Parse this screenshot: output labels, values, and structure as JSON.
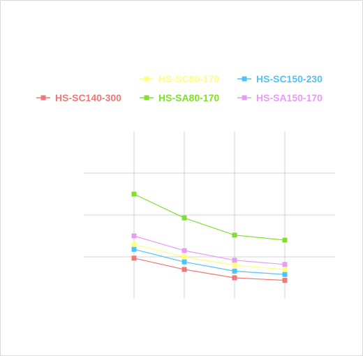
{
  "chart_data": {
    "type": "line",
    "x": [
      1,
      2,
      3,
      4
    ],
    "xlim": [
      0,
      5
    ],
    "ylim": [
      0,
      4
    ],
    "grid": true,
    "legend_position": "top",
    "series": [
      {
        "name": "HS-SC80-170",
        "color": "#ffff7f",
        "values": [
          1.3,
          1.0,
          0.8,
          0.7
        ]
      },
      {
        "name": "HS-SC150-230",
        "color": "#4fc3f7",
        "values": [
          1.18,
          0.88,
          0.66,
          0.58
        ]
      },
      {
        "name": "HS-SC140-300",
        "color": "#f07878",
        "values": [
          0.97,
          0.7,
          0.5,
          0.44
        ]
      },
      {
        "name": "HS-SA80-170",
        "color": "#7ee22a",
        "values": [
          2.5,
          1.93,
          1.52,
          1.4
        ]
      },
      {
        "name": "HS-SA150-170",
        "color": "#e79cf5",
        "values": [
          1.5,
          1.15,
          0.92,
          0.82
        ]
      }
    ]
  }
}
